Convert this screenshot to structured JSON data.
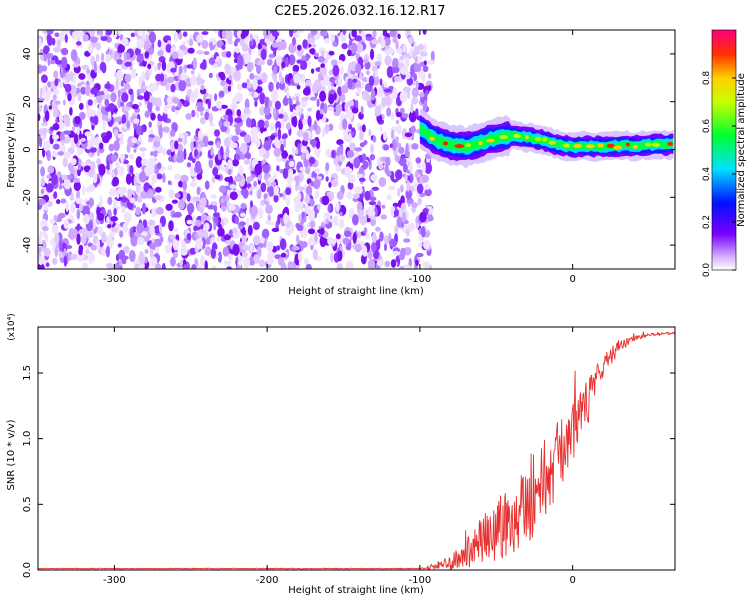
{
  "title": "C2E5.2026.032.16.12.R17",
  "chart_data": [
    {
      "type": "heatmap",
      "title": "C2E5.2026.032.16.12.R17",
      "xlabel": "Height of straight line (km)",
      "ylabel": "Frequency (Hz)",
      "xlim": [
        -350,
        67
      ],
      "ylim": [
        -50,
        50
      ],
      "xticks": [
        -300,
        -200,
        -100,
        0
      ],
      "xtick_labels": [
        "-300",
        "-200",
        "-100",
        "0"
      ],
      "yticks": [
        -40,
        -20,
        0,
        20,
        40
      ],
      "ytick_labels": [
        "-40",
        "-20",
        "0",
        "20",
        "40"
      ],
      "noise_region_x": [
        -350,
        -93
      ],
      "signal_ridge": {
        "x": [
          -100,
          -90,
          -80,
          -70,
          -60,
          -50,
          -40,
          -30,
          -20,
          -10,
          0,
          10,
          20,
          30,
          40,
          50,
          60,
          67
        ],
        "freq": [
          9,
          4,
          2,
          1,
          3,
          5,
          6,
          5,
          4,
          2,
          1,
          1.5,
          1,
          1.5,
          1.5,
          2,
          2,
          2
        ]
      },
      "colorbar": {
        "label": "Normalized spectral amplitude",
        "range": [
          0,
          1
        ],
        "ticks": [
          0.0,
          0.2,
          0.4,
          0.6,
          0.8
        ],
        "tick_labels": [
          "0.0",
          "0.2",
          "0.4",
          "0.6",
          "0.8"
        ]
      }
    },
    {
      "type": "line",
      "xlabel": "Height of straight line (km)",
      "ylabel": "SNR (10 * v/v)",
      "scale_label": "(x10⁴)",
      "xlim": [
        -350,
        67
      ],
      "ylim": [
        0,
        1.85
      ],
      "xticks": [
        -300,
        -200,
        -100,
        0
      ],
      "xtick_labels": [
        "-300",
        "-200",
        "-100",
        "0"
      ],
      "yticks": [
        0.0,
        0.5,
        1.0,
        1.5
      ],
      "ytick_labels": [
        "0.0",
        "0.5",
        "1.0",
        "1.5"
      ],
      "series": [
        {
          "name": "SNR",
          "color": "#e8312f",
          "x": [
            -350,
            -100,
            -80,
            -70,
            -60,
            -50,
            -40,
            -30,
            -20,
            -10,
            0,
            10,
            20,
            30,
            40,
            50,
            60,
            67
          ],
          "mean": [
            0.01,
            0.01,
            0.05,
            0.12,
            0.22,
            0.3,
            0.4,
            0.52,
            0.65,
            0.85,
            1.05,
            1.28,
            1.55,
            1.7,
            1.76,
            1.79,
            1.8,
            1.8
          ],
          "spread": [
            0.0,
            0.0,
            0.06,
            0.12,
            0.18,
            0.28,
            0.3,
            0.32,
            0.35,
            0.28,
            0.22,
            0.18,
            0.1,
            0.05,
            0.02,
            0.01,
            0.01,
            0.01
          ]
        }
      ]
    }
  ]
}
